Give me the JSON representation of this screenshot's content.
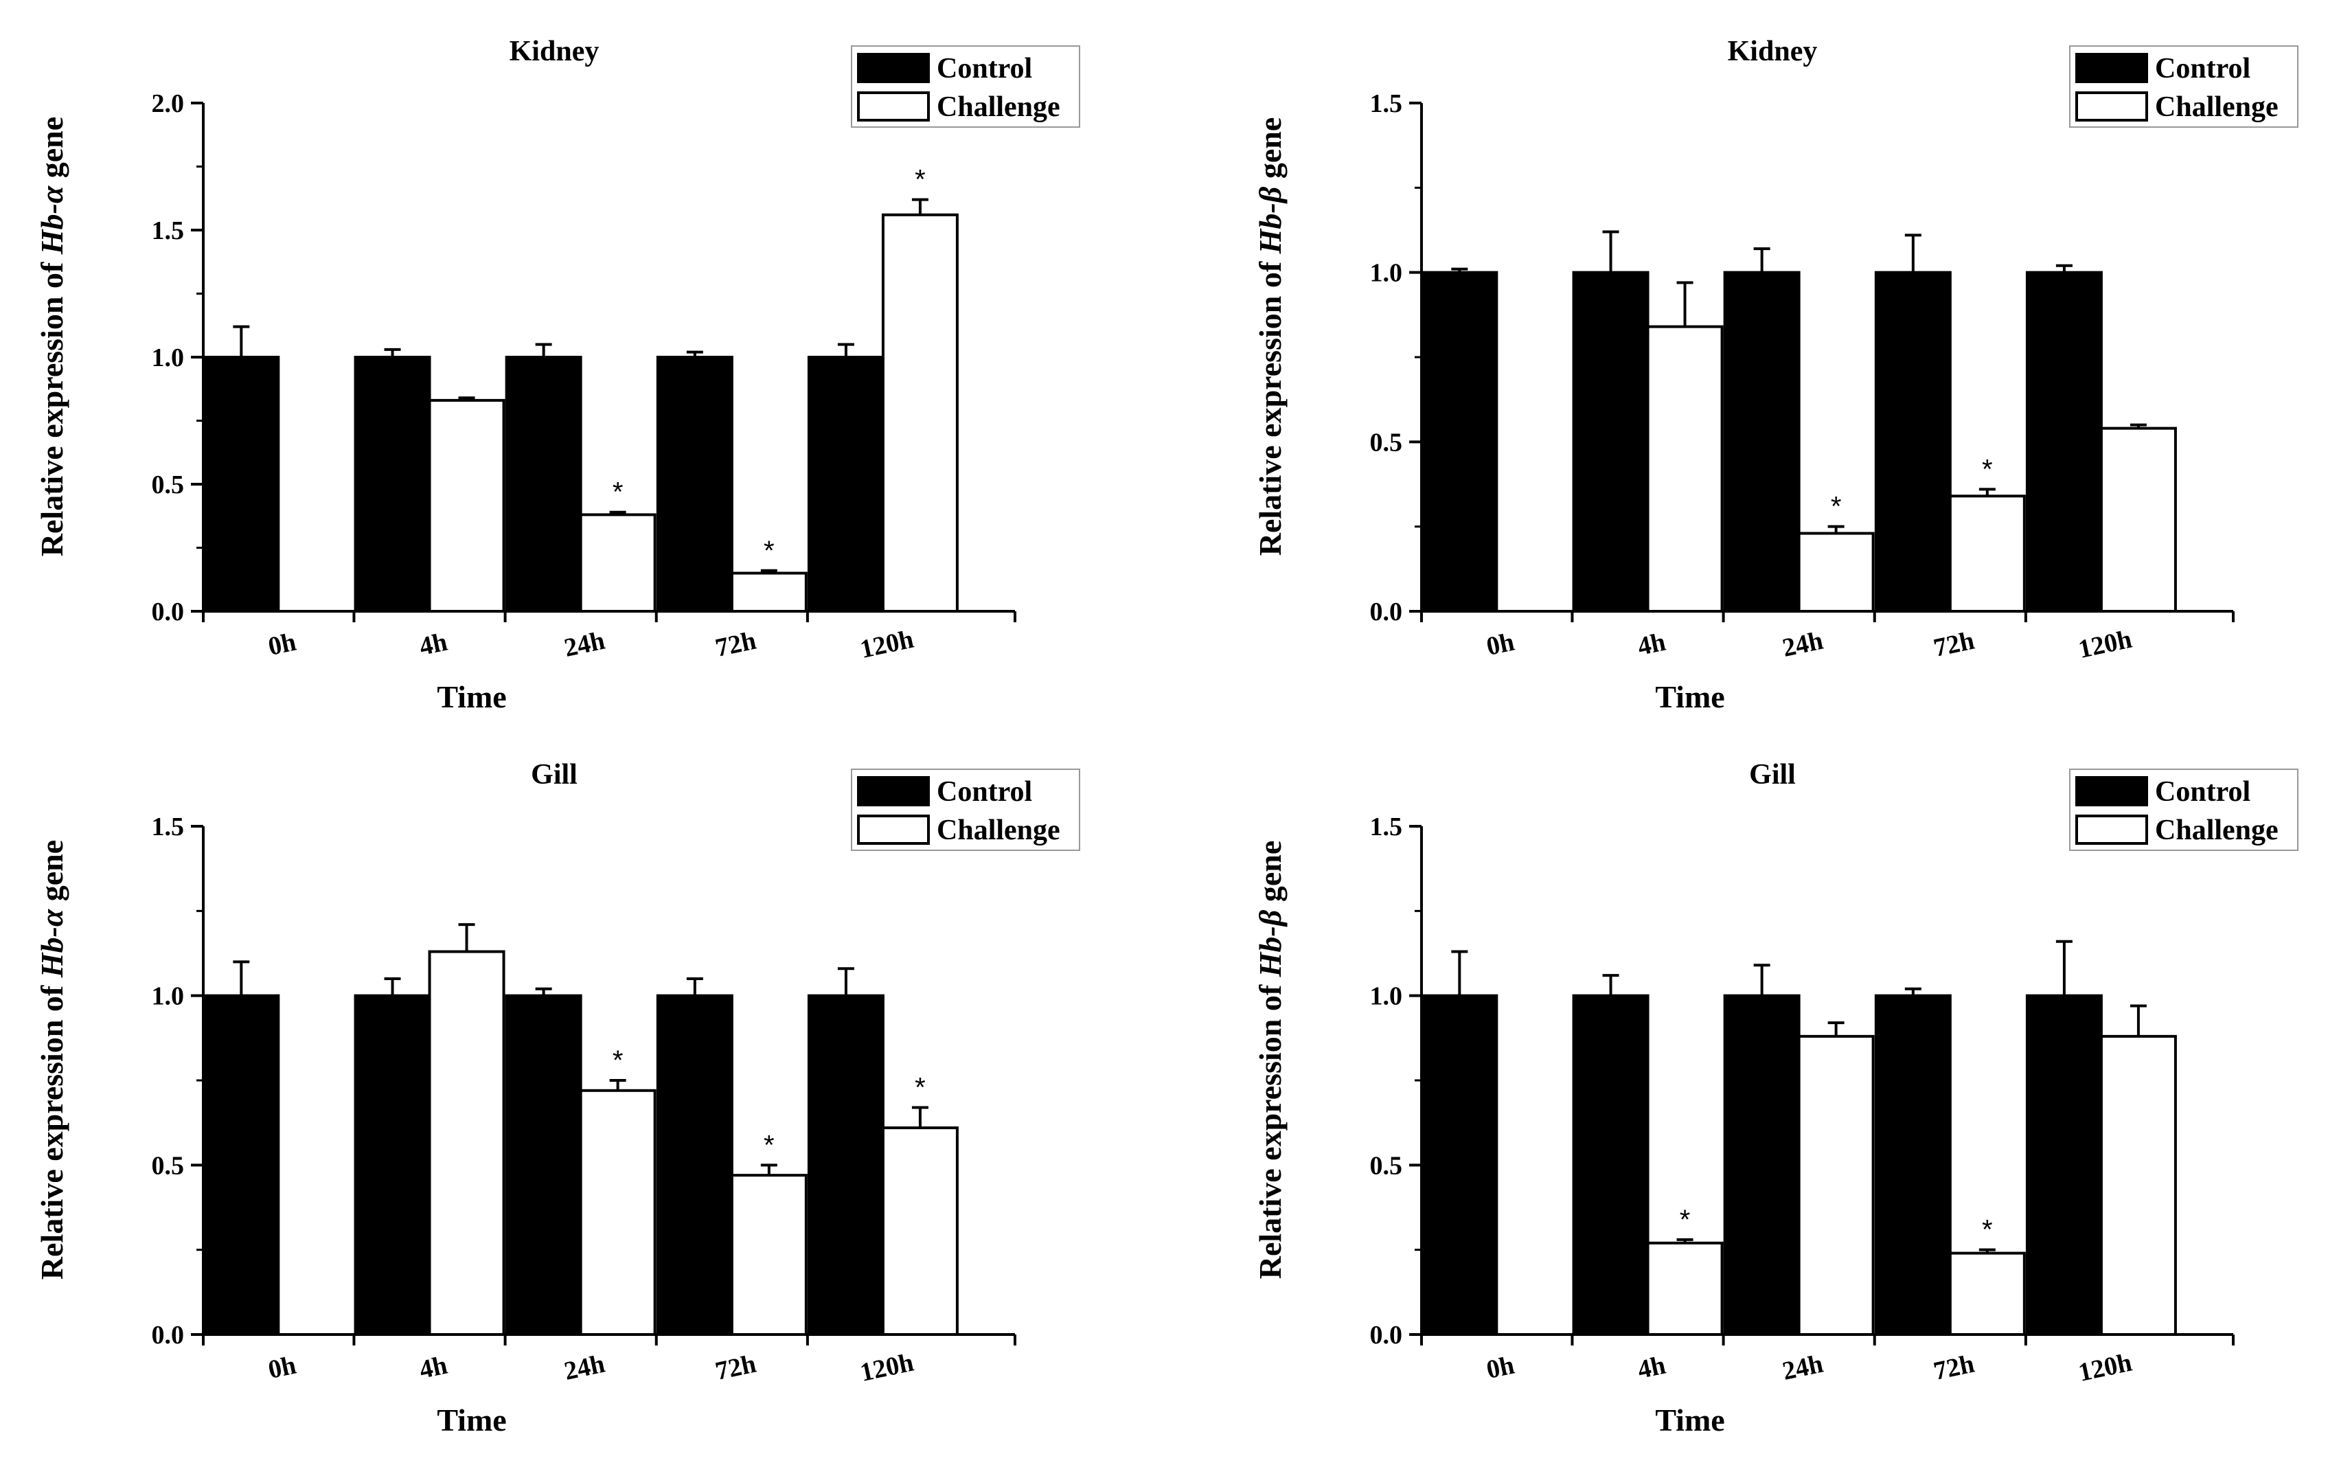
{
  "chart_data": [
    {
      "type": "bar",
      "title": "Kidney",
      "xlabel": "Time",
      "ylabel": {
        "prefix": "Relative expression of ",
        "gene": "Hb-α",
        "suffix": " gene"
      },
      "categories": [
        "0h",
        "4h",
        "24h",
        "72h",
        "120h"
      ],
      "ylim": [
        0,
        2.0
      ],
      "yticks": [
        "0.0",
        "0.5",
        "1.0",
        "1.5",
        "2.0"
      ],
      "legend": {
        "position": "top-right",
        "entries": [
          "Control",
          "Challenge"
        ]
      },
      "series": [
        {
          "name": "Control",
          "color": "#000000",
          "values": [
            1.0,
            1.0,
            1.0,
            1.0,
            1.0
          ],
          "errors": [
            0.12,
            0.03,
            0.05,
            0.02,
            0.05
          ],
          "significant": [
            false,
            false,
            false,
            false,
            false
          ]
        },
        {
          "name": "Challenge",
          "color": "#ffffff",
          "values": [
            null,
            0.83,
            0.38,
            0.15,
            1.56
          ],
          "errors": [
            null,
            0.01,
            0.01,
            0.01,
            0.06
          ],
          "significant": [
            false,
            false,
            true,
            true,
            true
          ]
        }
      ],
      "sig_marker": "*"
    },
    {
      "type": "bar",
      "title": "Kidney",
      "xlabel": "Time",
      "ylabel": {
        "prefix": "Relative expression of ",
        "gene": "Hb-β",
        "suffix": " gene"
      },
      "categories": [
        "0h",
        "4h",
        "24h",
        "72h",
        "120h"
      ],
      "ylim": [
        0,
        1.5
      ],
      "yticks": [
        "0.0",
        "0.5",
        "1.0",
        "1.5"
      ],
      "legend": {
        "position": "top-right",
        "entries": [
          "Control",
          "Challenge"
        ]
      },
      "series": [
        {
          "name": "Control",
          "color": "#000000",
          "values": [
            1.0,
            1.0,
            1.0,
            1.0,
            1.0
          ],
          "errors": [
            0.01,
            0.12,
            0.07,
            0.11,
            0.02
          ],
          "significant": [
            false,
            false,
            false,
            false,
            false
          ]
        },
        {
          "name": "Challenge",
          "color": "#ffffff",
          "values": [
            null,
            0.84,
            0.23,
            0.34,
            0.54
          ],
          "errors": [
            null,
            0.13,
            0.02,
            0.02,
            0.01
          ],
          "significant": [
            false,
            false,
            true,
            true,
            false
          ]
        }
      ],
      "sig_marker": "*"
    },
    {
      "type": "bar",
      "title": "Gill",
      "xlabel": "Time",
      "ylabel": {
        "prefix": "Relative expression of ",
        "gene": "Hb-α",
        "suffix": " gene"
      },
      "categories": [
        "0h",
        "4h",
        "24h",
        "72h",
        "120h"
      ],
      "ylim": [
        0,
        1.5
      ],
      "yticks": [
        "0.0",
        "0.5",
        "1.0",
        "1.5"
      ],
      "legend": {
        "position": "top-right",
        "entries": [
          "Control",
          "Challenge"
        ]
      },
      "series": [
        {
          "name": "Control",
          "color": "#000000",
          "values": [
            1.0,
            1.0,
            1.0,
            1.0,
            1.0
          ],
          "errors": [
            0.1,
            0.05,
            0.02,
            0.05,
            0.08
          ],
          "significant": [
            false,
            false,
            false,
            false,
            false
          ]
        },
        {
          "name": "Challenge",
          "color": "#ffffff",
          "values": [
            null,
            1.13,
            0.72,
            0.47,
            0.61
          ],
          "errors": [
            null,
            0.08,
            0.03,
            0.03,
            0.06
          ],
          "significant": [
            false,
            false,
            true,
            true,
            true
          ]
        }
      ],
      "sig_marker": "*"
    },
    {
      "type": "bar",
      "title": "Gill",
      "xlabel": "Time",
      "ylabel": {
        "prefix": "Relative expression of ",
        "gene": "Hb-β",
        "suffix": " gene"
      },
      "categories": [
        "0h",
        "4h",
        "24h",
        "72h",
        "120h"
      ],
      "ylim": [
        0,
        1.5
      ],
      "yticks": [
        "0.0",
        "0.5",
        "1.0",
        "1.5"
      ],
      "legend": {
        "position": "top-right",
        "entries": [
          "Control",
          "Challenge"
        ]
      },
      "series": [
        {
          "name": "Control",
          "color": "#000000",
          "values": [
            1.0,
            1.0,
            1.0,
            1.0,
            1.0
          ],
          "errors": [
            0.13,
            0.06,
            0.09,
            0.02,
            0.16
          ],
          "significant": [
            false,
            false,
            false,
            false,
            false
          ]
        },
        {
          "name": "Challenge",
          "color": "#ffffff",
          "values": [
            null,
            0.27,
            0.88,
            0.24,
            0.88
          ],
          "errors": [
            null,
            0.01,
            0.04,
            0.01,
            0.09
          ],
          "significant": [
            false,
            true,
            false,
            true,
            false
          ]
        }
      ],
      "sig_marker": "*"
    }
  ]
}
